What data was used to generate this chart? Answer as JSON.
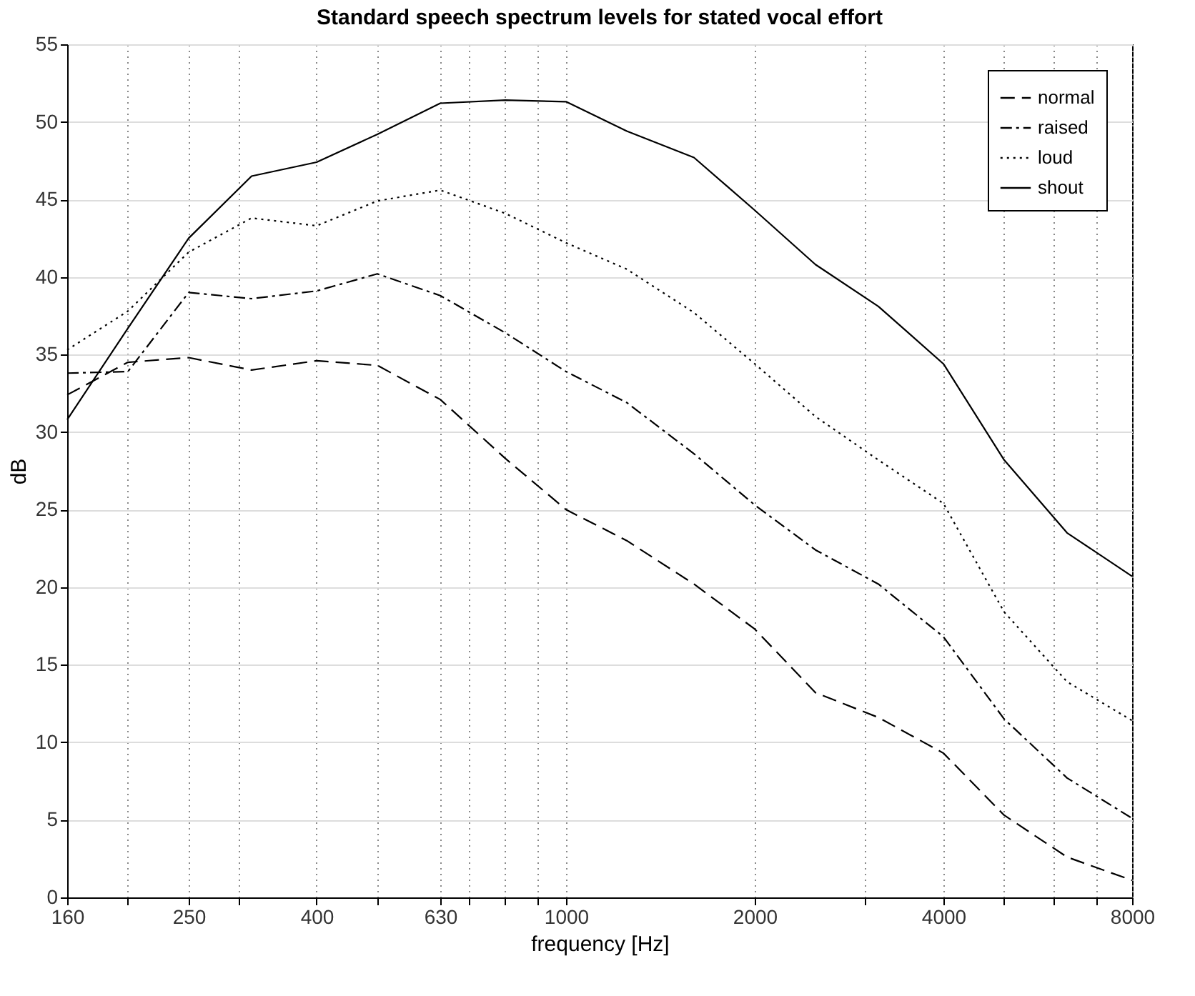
{
  "chart_data": {
    "type": "line",
    "title": "Standard speech spectrum levels for stated vocal effort",
    "xlabel": "frequency [Hz]",
    "ylabel": "dB",
    "log": "x",
    "x": [
      160,
      200,
      250,
      315,
      400,
      500,
      630,
      800,
      1000,
      1250,
      1600,
      2000,
      2500,
      3150,
      4000,
      5000,
      6300,
      8000
    ],
    "series": [
      {
        "name": "normal",
        "color": "#000000",
        "line_style": "dashed",
        "values": [
          32.4,
          34.5,
          34.8,
          34.0,
          34.6,
          34.3,
          32.1,
          28.3,
          25.0,
          23.0,
          20.2,
          17.3,
          13.2,
          11.6,
          9.3,
          5.3,
          2.6,
          1.1
        ]
      },
      {
        "name": "raised",
        "color": "#000000",
        "line_style": "dashdot",
        "values": [
          33.8,
          33.9,
          39.0,
          38.6,
          39.1,
          40.2,
          38.8,
          36.4,
          33.9,
          31.9,
          28.6,
          25.3,
          22.4,
          20.2,
          16.8,
          11.5,
          7.7,
          5.1
        ]
      },
      {
        "name": "loud",
        "color": "#000000",
        "line_style": "dotted",
        "values": [
          35.3,
          37.8,
          41.6,
          43.8,
          43.3,
          44.9,
          45.6,
          44.1,
          42.2,
          40.5,
          37.7,
          34.4,
          31.0,
          28.2,
          25.4,
          18.4,
          13.9,
          11.4
        ]
      },
      {
        "name": "shout",
        "color": "#000000",
        "line_style": "solid",
        "values": [
          30.8,
          36.7,
          42.5,
          46.5,
          47.4,
          49.2,
          51.2,
          51.4,
          51.3,
          49.4,
          47.7,
          44.3,
          40.8,
          38.1,
          34.4,
          28.2,
          23.5,
          20.7
        ]
      }
    ],
    "xlim": [
      160,
      8000
    ],
    "ylim": [
      0,
      55
    ],
    "xticks": [
      160,
      {
        "value": 200,
        "label": null
      },
      250,
      {
        "value": 300,
        "label": null
      },
      400,
      {
        "value": 500,
        "label": null
      },
      630,
      {
        "value": 700,
        "label": null
      },
      {
        "value": 800,
        "label": null
      },
      {
        "value": 900,
        "label": null
      },
      1000,
      2000,
      {
        "value": 3000,
        "label": null
      },
      4000,
      {
        "value": 5000,
        "label": null
      },
      {
        "value": 6000,
        "label": null
      },
      {
        "value": 7000,
        "label": null
      },
      8000
    ],
    "yticks": [
      0,
      5,
      10,
      15,
      20,
      25,
      30,
      35,
      40,
      45,
      50,
      55
    ],
    "grid": true,
    "legend": "top right",
    "marker": "none"
  }
}
